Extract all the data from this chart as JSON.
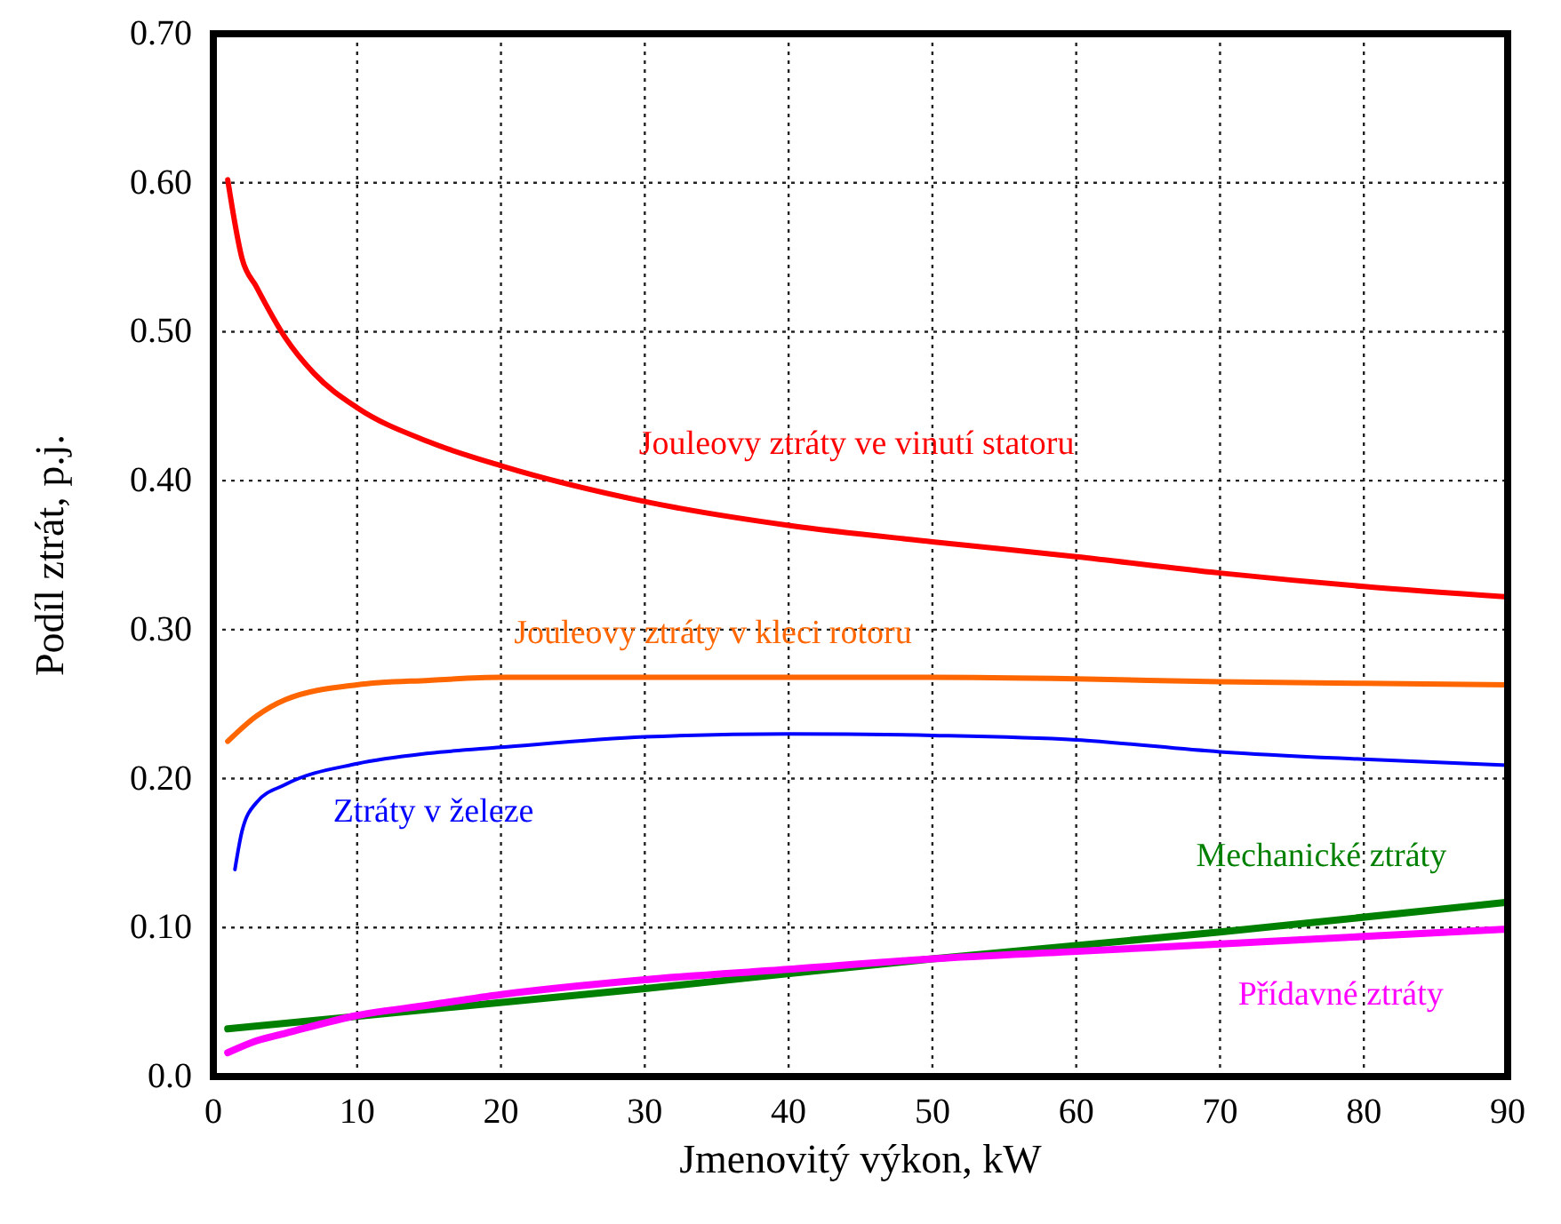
{
  "chart_data": {
    "type": "line",
    "xlabel": "Jmenovitý výkon, kW",
    "ylabel": "Podíl ztrát, p.j.",
    "xlim": [
      0,
      90
    ],
    "xticks": [
      0,
      10,
      20,
      30,
      40,
      50,
      60,
      70,
      80,
      90
    ],
    "ylim": [
      0,
      0.7
    ],
    "yticks": [
      {
        "value": 0,
        "label": "0.0"
      },
      {
        "value": 0.1,
        "label": "0.10"
      },
      {
        "value": 0.2,
        "label": "0.20"
      },
      {
        "value": 0.3,
        "label": "0.30"
      },
      {
        "value": 0.4,
        "label": "0.40"
      },
      {
        "value": 0.5,
        "label": "0.50"
      },
      {
        "value": 0.6,
        "label": "0.60"
      },
      {
        "value": 0.7,
        "label": "0.70"
      }
    ],
    "grid": true,
    "line_style": "solid",
    "marker": "none",
    "series": [
      {
        "name": "Jouleovy ztráty ve vinutí statoru",
        "color": "#ff0000",
        "x": [
          1,
          2,
          3,
          5,
          7,
          10,
          15,
          20,
          30,
          40,
          50,
          60,
          70,
          80,
          90
        ],
        "values": [
          0.602,
          0.549,
          0.53,
          0.496,
          0.472,
          0.449,
          0.426,
          0.41,
          0.386,
          0.37,
          0.359,
          0.349,
          0.338,
          0.329,
          0.322
        ]
      },
      {
        "name": "Jouleovy ztráty v kleci rotoru",
        "color": "#ff6600",
        "x": [
          1,
          3,
          5,
          10,
          15,
          20,
          30,
          40,
          50,
          60,
          70,
          80,
          90
        ],
        "values": [
          0.225,
          0.242,
          0.253,
          0.263,
          0.266,
          0.268,
          0.268,
          0.268,
          0.268,
          0.267,
          0.265,
          0.264,
          0.263
        ]
      },
      {
        "name": "Ztráty v železe",
        "color": "#0000ff",
        "x": [
          1.5,
          2,
          3,
          5,
          10,
          15,
          20,
          30,
          40,
          50,
          60,
          70,
          80,
          90
        ],
        "values": [
          0.139,
          0.165,
          0.184,
          0.196,
          0.21,
          0.217,
          0.221,
          0.228,
          0.23,
          0.229,
          0.226,
          0.218,
          0.213,
          0.209
        ]
      },
      {
        "name": "Mechanické ztráty",
        "color": "#008000",
        "x": [
          1,
          30,
          50,
          70,
          90
        ],
        "values": [
          0.032,
          0.059,
          0.079,
          0.097,
          0.117
        ]
      },
      {
        "name": "Přídavné ztráty",
        "color": "#ff00ff",
        "x": [
          1,
          3,
          5,
          10,
          15,
          20,
          30,
          40,
          50,
          60,
          70,
          80,
          90
        ],
        "values": [
          0.016,
          0.024,
          0.029,
          0.041,
          0.048,
          0.055,
          0.065,
          0.072,
          0.079,
          0.084,
          0.089,
          0.094,
          0.099
        ]
      }
    ]
  }
}
